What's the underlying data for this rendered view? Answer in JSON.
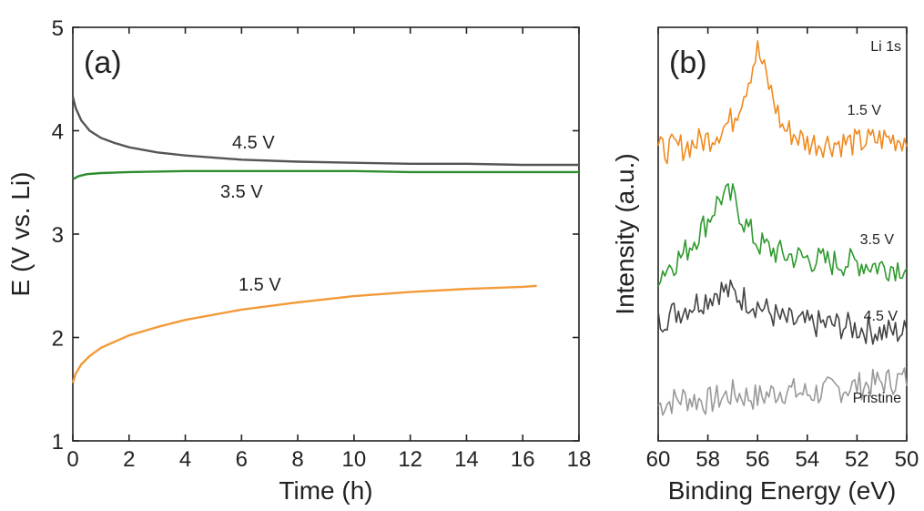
{
  "chart_data": [
    {
      "type": "line",
      "panel_label": "(a)",
      "xlabel": "Time (h)",
      "ylabel": "E (V vs. Li)",
      "xlim": [
        0,
        18
      ],
      "ylim": [
        1,
        5
      ],
      "xticks": [
        "0",
        "2",
        "4",
        "6",
        "8",
        "10",
        "12",
        "14",
        "16",
        "18"
      ],
      "yticks": [
        "1",
        "2",
        "3",
        "4",
        "5"
      ],
      "grid": false,
      "series": [
        {
          "name": "4.5 V",
          "color": "#555555",
          "x": [
            0,
            0.1,
            0.3,
            0.6,
            1,
            1.5,
            2,
            3,
            4,
            6,
            8,
            10,
            12,
            14,
            16,
            18
          ],
          "y": [
            4.33,
            4.22,
            4.1,
            4.0,
            3.93,
            3.88,
            3.84,
            3.79,
            3.76,
            3.72,
            3.7,
            3.69,
            3.68,
            3.68,
            3.67,
            3.67
          ]
        },
        {
          "name": "3.5 V",
          "color": "#2e8b2e",
          "x": [
            0,
            0.2,
            0.5,
            1,
            2,
            4,
            6,
            8,
            10,
            12,
            14,
            16,
            18
          ],
          "y": [
            3.53,
            3.56,
            3.58,
            3.59,
            3.6,
            3.61,
            3.61,
            3.61,
            3.61,
            3.6,
            3.6,
            3.6,
            3.6
          ]
        },
        {
          "name": "1.5 V",
          "color": "#f39a3a",
          "x": [
            0,
            0.1,
            0.3,
            0.6,
            1,
            1.5,
            2,
            3,
            4,
            6,
            8,
            10,
            12,
            14,
            16,
            16.5
          ],
          "y": [
            1.56,
            1.65,
            1.74,
            1.82,
            1.9,
            1.96,
            2.02,
            2.1,
            2.17,
            2.27,
            2.34,
            2.4,
            2.44,
            2.47,
            2.49,
            2.5
          ]
        }
      ]
    },
    {
      "type": "line",
      "panel_label": "(b)",
      "annotation": "Li 1s",
      "xlabel": "Binding Energy (eV)",
      "ylabel": "Intensity (a.u.)",
      "xlim": [
        60,
        50
      ],
      "xticks": [
        "60",
        "58",
        "56",
        "54",
        "52",
        "50"
      ],
      "series": [
        {
          "name": "Pristine",
          "color": "#999999",
          "x": [
            60,
            59,
            58,
            57,
            56,
            55,
            54,
            53,
            52,
            51,
            50
          ],
          "y": [
            0.08,
            0.1,
            0.09,
            0.11,
            0.1,
            0.12,
            0.11,
            0.12,
            0.13,
            0.14,
            0.15
          ]
        },
        {
          "name": "4.5 V",
          "color": "#444444",
          "x": [
            60,
            59,
            58,
            57.5,
            57,
            56,
            55,
            54,
            53,
            52,
            51,
            50
          ],
          "y": [
            0.3,
            0.33,
            0.36,
            0.38,
            0.37,
            0.34,
            0.3,
            0.29,
            0.29,
            0.28,
            0.27,
            0.27
          ]
        },
        {
          "name": "3.5 V",
          "color": "#2e9a2e",
          "x": [
            60,
            59,
            58,
            57.5,
            57,
            56.5,
            56,
            55,
            54,
            53,
            52,
            51,
            50
          ],
          "y": [
            0.42,
            0.47,
            0.56,
            0.62,
            0.62,
            0.55,
            0.5,
            0.47,
            0.46,
            0.45,
            0.45,
            0.44,
            0.44
          ]
        },
        {
          "name": "1.5 V",
          "color": "#f08a1f",
          "x": [
            60,
            59,
            58,
            57,
            56.5,
            56,
            55.5,
            55,
            54,
            53,
            52,
            51,
            50
          ],
          "y": [
            0.74,
            0.75,
            0.77,
            0.82,
            0.9,
            1.0,
            0.9,
            0.8,
            0.76,
            0.76,
            0.76,
            0.77,
            0.77
          ]
        }
      ]
    }
  ]
}
